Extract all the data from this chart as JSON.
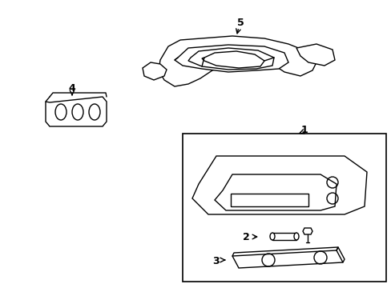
{
  "background": "#ffffff",
  "line_color": "#000000",
  "line_width": 1.0,
  "fig_w": 4.89,
  "fig_h": 3.6,
  "dpi": 100
}
